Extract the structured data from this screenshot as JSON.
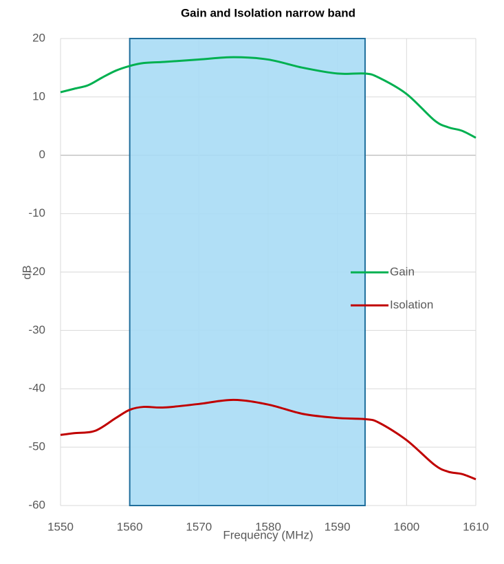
{
  "chart_data": {
    "type": "line",
    "title": "Gain and Isolation narrow band",
    "x_label": "Frequency (MHz)",
    "y_label": "dB",
    "xlim": [
      1550,
      1610
    ],
    "xticks": [
      1550,
      1560,
      1570,
      1580,
      1590,
      1600,
      1610
    ],
    "ylim": [
      -60,
      20
    ],
    "yticks": [
      -60,
      -50,
      -40,
      -30,
      -20,
      -10,
      0,
      10,
      20
    ],
    "grid": true,
    "legend": "right",
    "band": {
      "x": [
        1560,
        1594
      ],
      "color": "#a9dcf5",
      "edge_color": "#1f6e9c"
    },
    "series": [
      {
        "name": "Gain",
        "color": "#00b050",
        "x": [
          1550,
          1552,
          1554,
          1556,
          1558,
          1560,
          1562,
          1565,
          1570,
          1575,
          1580,
          1585,
          1590,
          1594,
          1596,
          1600,
          1604,
          1606,
          1608,
          1610
        ],
        "values": [
          10.8,
          11.4,
          12.0,
          13.3,
          14.5,
          15.3,
          15.8,
          16.0,
          16.4,
          16.8,
          16.4,
          15.0,
          14.0,
          14.0,
          13.3,
          10.5,
          6.0,
          4.8,
          4.2,
          3.0
        ]
      },
      {
        "name": "Isolation",
        "color": "#c00000",
        "x": [
          1550,
          1552,
          1555,
          1558,
          1560,
          1562,
          1565,
          1570,
          1575,
          1580,
          1585,
          1590,
          1594,
          1596,
          1600,
          1604,
          1606,
          1608,
          1610
        ],
        "values": [
          -47.9,
          -47.6,
          -47.2,
          -45.0,
          -43.6,
          -43.1,
          -43.2,
          -42.6,
          -41.9,
          -42.7,
          -44.3,
          -45.0,
          -45.2,
          -45.8,
          -48.8,
          -53.0,
          -54.2,
          -54.6,
          -55.5
        ]
      }
    ]
  }
}
